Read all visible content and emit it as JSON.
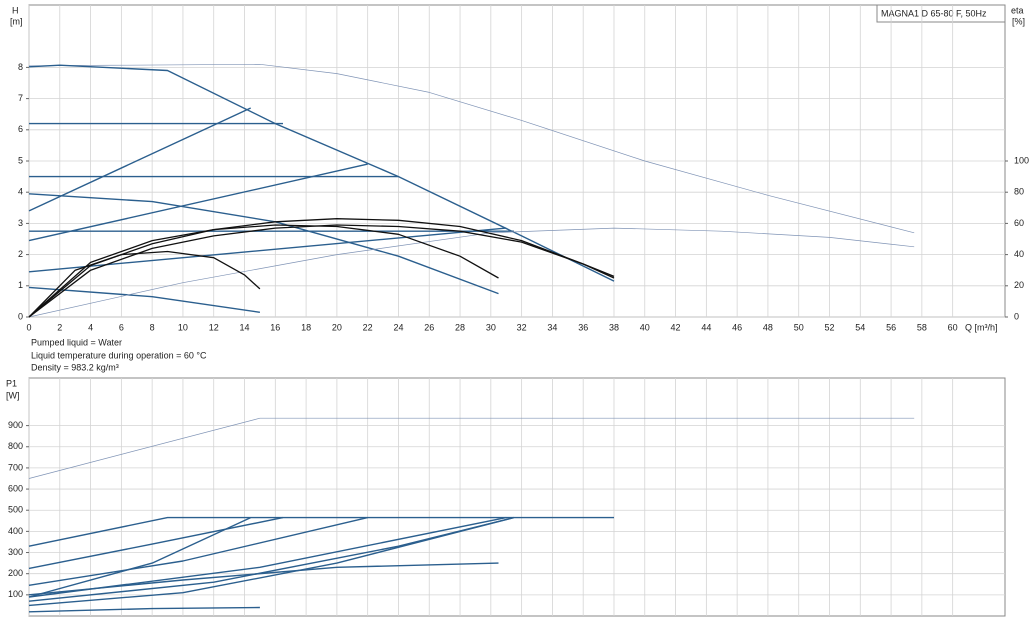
{
  "chart_data": [
    {
      "type": "line",
      "title": "MAGNA1 D 65-80 F, 50Hz",
      "y_label": [
        "H",
        "[m]"
      ],
      "y2_label": [
        "eta",
        "[%]"
      ],
      "x_label": "Q [m³/h]",
      "notes": [
        "Pumped liquid = Water",
        "Liquid temperature during operation = 60 °C",
        "Density = 983.2 kg/m³"
      ],
      "xlim": [
        0,
        63.4
      ],
      "xticks": [
        0,
        2,
        4,
        6,
        8,
        10,
        12,
        14,
        16,
        18,
        20,
        22,
        24,
        26,
        28,
        30,
        32,
        34,
        36,
        38,
        40,
        42,
        44,
        46,
        48,
        50,
        52,
        54,
        56,
        58,
        60
      ],
      "ylim": [
        0,
        10
      ],
      "yticks": [
        0,
        1,
        2,
        3,
        4,
        5,
        6,
        7,
        8
      ],
      "y2lim": [
        0,
        200
      ],
      "y2ticks": [
        0,
        20,
        40,
        60,
        80,
        100
      ],
      "grid": true,
      "series": [
        {
          "color": "#7f93b5",
          "width": 0.7,
          "x": [
            0,
            15,
            20,
            26,
            32,
            40,
            48,
            57.5
          ],
          "values": [
            8.05,
            8.1,
            7.8,
            7.2,
            6.3,
            5.0,
            3.9,
            2.7
          ]
        },
        {
          "color": "#2b5f8e",
          "width": 1.4,
          "x": [
            0,
            2,
            9,
            16,
            24,
            32,
            38
          ],
          "values": [
            8.02,
            8.07,
            7.9,
            6.2,
            4.5,
            2.6,
            1.15
          ]
        },
        {
          "color": "#2b5f8e",
          "width": 1.4,
          "x": [
            0,
            16.5
          ],
          "values": [
            6.2,
            6.2
          ]
        },
        {
          "color": "#2b5f8e",
          "width": 1.4,
          "x": [
            0,
            24
          ],
          "values": [
            4.5,
            4.5
          ]
        },
        {
          "color": "#2b5f8e",
          "width": 1.4,
          "x": [
            0,
            31.5
          ],
          "values": [
            2.75,
            2.75
          ]
        },
        {
          "color": "#2b5f8e",
          "width": 1.4,
          "x": [
            0,
            14.4
          ],
          "values": [
            3.4,
            6.7
          ]
        },
        {
          "color": "#2b5f8e",
          "width": 1.4,
          "x": [
            0,
            22
          ],
          "values": [
            2.45,
            4.9
          ]
        },
        {
          "color": "#2b5f8e",
          "width": 1.4,
          "x": [
            0,
            31
          ],
          "values": [
            1.45,
            2.85
          ]
        },
        {
          "color": "#2b5f8e",
          "width": 1.4,
          "x": [
            0,
            8,
            16,
            24,
            30.5
          ],
          "values": [
            3.95,
            3.7,
            3.05,
            1.95,
            0.75
          ]
        },
        {
          "color": "#2b5f8e",
          "width": 1.4,
          "x": [
            0,
            8,
            15
          ],
          "values": [
            0.95,
            0.65,
            0.15
          ]
        },
        {
          "color": "#7f93b5",
          "width": 0.7,
          "axis": "y2",
          "x": [
            0,
            10,
            20,
            30,
            38,
            45,
            52,
            57.5
          ],
          "values": [
            0,
            22,
            40,
            54,
            57,
            55,
            51,
            45
          ]
        },
        {
          "color": "#111111",
          "width": 1.3,
          "axis": "y2",
          "x": [
            0,
            4,
            8,
            12,
            16,
            20,
            24,
            28,
            32,
            36,
            38
          ],
          "values": [
            0,
            33,
            47,
            56,
            61,
            63,
            62,
            58,
            49,
            34,
            26
          ]
        },
        {
          "color": "#111111",
          "width": 1.3,
          "axis": "y2",
          "x": [
            0,
            4,
            8,
            12,
            16,
            20,
            24,
            28,
            32,
            36,
            38
          ],
          "values": [
            0,
            30,
            44,
            52,
            57,
            59,
            58,
            55,
            48,
            34,
            25
          ]
        },
        {
          "color": "#111111",
          "width": 1.3,
          "axis": "y2",
          "x": [
            0,
            4,
            8,
            12,
            16,
            20,
            24,
            28,
            30.5
          ],
          "values": [
            0,
            35,
            49,
            56,
            59,
            58,
            53,
            39,
            25
          ]
        },
        {
          "color": "#111111",
          "width": 1.3,
          "axis": "y2",
          "x": [
            0,
            3,
            6,
            9,
            12,
            14,
            15
          ],
          "values": [
            0,
            30,
            40,
            42,
            38,
            27,
            18
          ]
        }
      ]
    },
    {
      "type": "line",
      "y_label": [
        "P1",
        "[W]"
      ],
      "xlim": [
        0,
        63.4
      ],
      "ylim": [
        0,
        1125
      ],
      "yticks": [
        100,
        200,
        300,
        400,
        500,
        600,
        700,
        800,
        900
      ],
      "grid": true,
      "series": [
        {
          "color": "#7f93b5",
          "width": 0.7,
          "x": [
            0,
            15,
            57.5
          ],
          "values": [
            650,
            935,
            935
          ]
        },
        {
          "color": "#2b5f8e",
          "width": 1.4,
          "x": [
            0,
            9,
            38
          ],
          "values": [
            330,
            465,
            465
          ]
        },
        {
          "color": "#2b5f8e",
          "width": 1.4,
          "x": [
            0,
            8,
            16.5
          ],
          "values": [
            225,
            340,
            465
          ]
        },
        {
          "color": "#2b5f8e",
          "width": 1.4,
          "x": [
            0,
            8,
            14.4
          ],
          "values": [
            90,
            250,
            465
          ]
        },
        {
          "color": "#2b5f8e",
          "width": 1.4,
          "x": [
            0,
            10,
            22
          ],
          "values": [
            145,
            260,
            465
          ]
        },
        {
          "color": "#2b5f8e",
          "width": 1.4,
          "x": [
            0,
            12,
            24,
            31.5
          ],
          "values": [
            70,
            160,
            330,
            465
          ]
        },
        {
          "color": "#2b5f8e",
          "width": 1.4,
          "x": [
            0,
            15,
            31
          ],
          "values": [
            90,
            230,
            465
          ]
        },
        {
          "color": "#2b5f8e",
          "width": 1.4,
          "x": [
            0,
            10,
            20,
            30.5
          ],
          "values": [
            100,
            170,
            230,
            250
          ]
        },
        {
          "color": "#2b5f8e",
          "width": 1.4,
          "x": [
            0,
            10,
            20,
            31.5
          ],
          "values": [
            50,
            110,
            250,
            465
          ]
        },
        {
          "color": "#2b5f8e",
          "width": 1.4,
          "x": [
            0,
            8,
            15
          ],
          "values": [
            20,
            35,
            40
          ]
        }
      ]
    }
  ]
}
